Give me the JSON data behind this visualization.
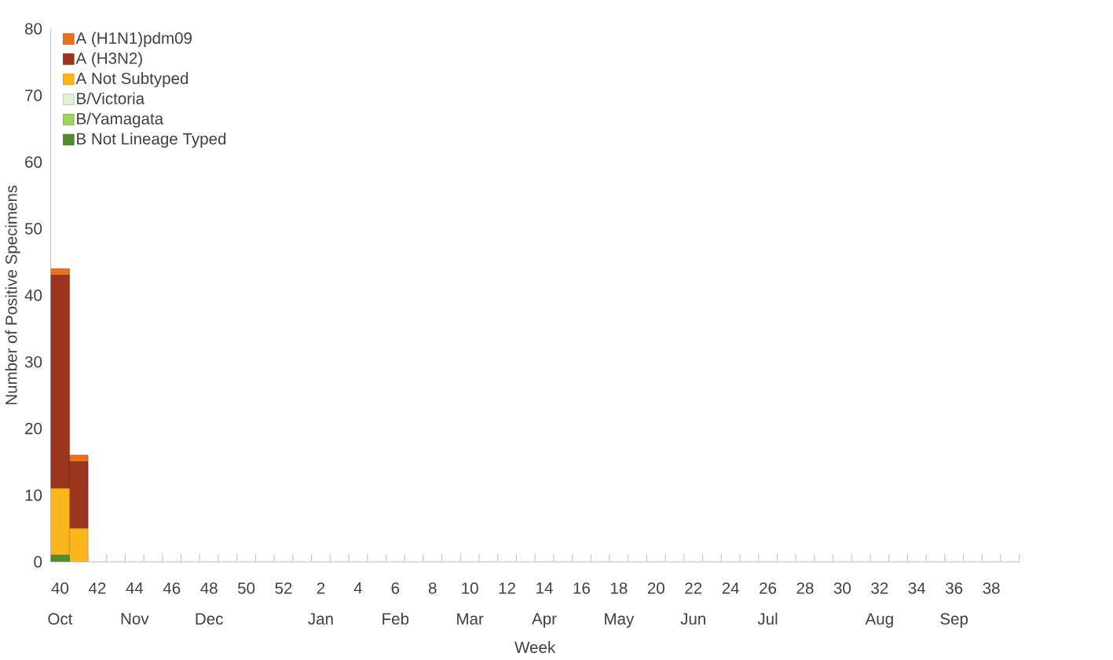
{
  "chart_data": {
    "type": "bar",
    "stacked": true,
    "xlabel": "Week",
    "ylabel": "Number of Positive Specimens",
    "categories": [
      "40 Oct",
      null,
      "42",
      null,
      "44 Nov",
      null,
      "46",
      null,
      "48 Dec",
      null,
      "50",
      null,
      "52",
      null,
      "2 Jan",
      null,
      "4",
      null,
      "6 Feb",
      null,
      "8",
      null,
      "10 Mar",
      null,
      "12",
      null,
      "14 Apr",
      null,
      "16",
      null,
      "18 May",
      null,
      "20",
      null,
      "22 Jun",
      null,
      "24",
      null,
      "26 Jul",
      null,
      "28",
      null,
      "30",
      null,
      "32 Aug",
      null,
      "34",
      null,
      "36 Sep",
      null,
      "38",
      null
    ],
    "series": [
      {
        "name": "B Not Lineage Typed",
        "color": "#548b2d",
        "values": [
          1,
          0,
          null,
          null,
          null,
          null,
          null,
          null,
          null,
          null,
          null,
          null,
          null,
          null,
          null,
          null,
          null,
          null,
          null,
          null,
          null,
          null,
          null,
          null,
          null,
          null,
          null,
          null,
          null,
          null,
          null,
          null,
          null,
          null,
          null,
          null,
          null,
          null,
          null,
          null,
          null,
          null,
          null,
          null,
          null,
          null,
          null,
          null,
          null,
          null,
          null,
          null
        ]
      },
      {
        "name": "B/Yamagata",
        "color": "#9fd25f",
        "values": [
          0,
          0,
          null,
          null,
          null,
          null,
          null,
          null,
          null,
          null,
          null,
          null,
          null,
          null,
          null,
          null,
          null,
          null,
          null,
          null,
          null,
          null,
          null,
          null,
          null,
          null,
          null,
          null,
          null,
          null,
          null,
          null,
          null,
          null,
          null,
          null,
          null,
          null,
          null,
          null,
          null,
          null,
          null,
          null,
          null,
          null,
          null,
          null,
          null,
          null,
          null,
          null
        ]
      },
      {
        "name": "B/Victoria",
        "color": "#e2f0d5",
        "values": [
          0,
          0,
          null,
          null,
          null,
          null,
          null,
          null,
          null,
          null,
          null,
          null,
          null,
          null,
          null,
          null,
          null,
          null,
          null,
          null,
          null,
          null,
          null,
          null,
          null,
          null,
          null,
          null,
          null,
          null,
          null,
          null,
          null,
          null,
          null,
          null,
          null,
          null,
          null,
          null,
          null,
          null,
          null,
          null,
          null,
          null,
          null,
          null,
          null,
          null,
          null,
          null
        ]
      },
      {
        "name": "A Not Subtyped",
        "color": "#fbb61d",
        "values": [
          10,
          5,
          null,
          null,
          null,
          null,
          null,
          null,
          null,
          null,
          null,
          null,
          null,
          null,
          null,
          null,
          null,
          null,
          null,
          null,
          null,
          null,
          null,
          null,
          null,
          null,
          null,
          null,
          null,
          null,
          null,
          null,
          null,
          null,
          null,
          null,
          null,
          null,
          null,
          null,
          null,
          null,
          null,
          null,
          null,
          null,
          null,
          null,
          null,
          null,
          null,
          null
        ]
      },
      {
        "name": "A (H3N2)",
        "color": "#9c351d",
        "values": [
          32,
          10,
          null,
          null,
          null,
          null,
          null,
          null,
          null,
          null,
          null,
          null,
          null,
          null,
          null,
          null,
          null,
          null,
          null,
          null,
          null,
          null,
          null,
          null,
          null,
          null,
          null,
          null,
          null,
          null,
          null,
          null,
          null,
          null,
          null,
          null,
          null,
          null,
          null,
          null,
          null,
          null,
          null,
          null,
          null,
          null,
          null,
          null,
          null,
          null,
          null,
          null
        ]
      },
      {
        "name": "A (H1N1)pdm09",
        "color": "#ea7024",
        "values": [
          1,
          1,
          null,
          null,
          null,
          null,
          null,
          null,
          null,
          null,
          null,
          null,
          null,
          null,
          null,
          null,
          null,
          null,
          null,
          null,
          null,
          null,
          null,
          null,
          null,
          null,
          null,
          null,
          null,
          null,
          null,
          null,
          null,
          null,
          null,
          null,
          null,
          null,
          null,
          null,
          null,
          null,
          null,
          null,
          null,
          null,
          null,
          null,
          null,
          null,
          null,
          null
        ]
      }
    ],
    "ylim": [
      0,
      80
    ],
    "yticks": [
      0,
      10,
      20,
      30,
      40,
      50,
      60,
      70,
      80
    ],
    "legend": "top left",
    "grid": false
  }
}
